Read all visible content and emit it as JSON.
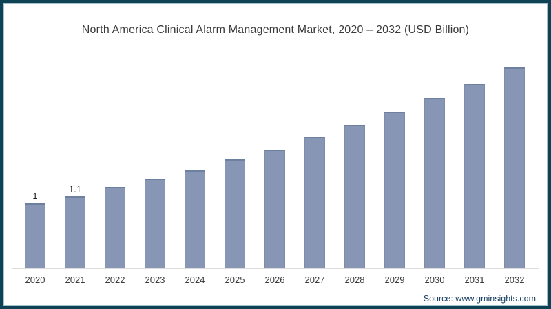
{
  "title": "North America Clinical Alarm Management Market, 2020 – 2032 (USD Billion)",
  "source": "Source: www.gminsights.com",
  "colors": {
    "bar": "#8696b4",
    "bar_edge": "#6e809f",
    "frame_border": "#0e4356",
    "title_text": "#3a3a3a",
    "axis_line": "#dcdcdc",
    "axis_label_text": "#3b3b3b",
    "source_text": "#1a4063"
  },
  "chart_data": {
    "type": "bar",
    "title": "North America Clinical Alarm Management Market, 2020 – 2032 (USD Billion)",
    "categories": [
      "2020",
      "2021",
      "2022",
      "2023",
      "2024",
      "2025",
      "2026",
      "2027",
      "2028",
      "2029",
      "2030",
      "2031",
      "2032"
    ],
    "values": [
      1,
      1.1,
      1.25,
      1.37,
      1.5,
      1.67,
      1.82,
      2.01,
      2.19,
      2.39,
      2.61,
      2.82,
      3.07
    ],
    "bar_labels": [
      "1",
      "1.1",
      "",
      "",
      "",
      "",
      "",
      "",
      "",
      "",
      "",
      "",
      ""
    ],
    "xlabel": "",
    "ylabel": "",
    "ylim": [
      0,
      3.2
    ],
    "grid": false,
    "legend": false,
    "bar_color": "#8696b4"
  }
}
